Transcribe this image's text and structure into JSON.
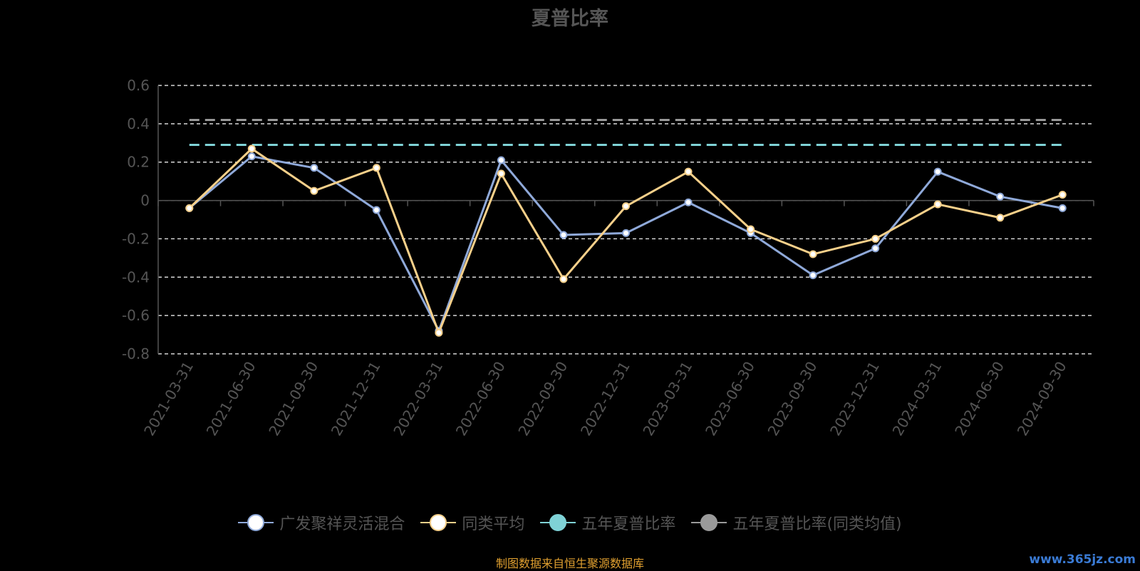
{
  "chart_data": {
    "type": "line",
    "title": "夏普比率",
    "categories": [
      "2021-03-31",
      "2021-06-30",
      "2021-09-30",
      "2021-12-31",
      "2022-03-31",
      "2022-06-30",
      "2022-09-30",
      "2022-12-31",
      "2023-03-31",
      "2023-06-30",
      "2023-09-30",
      "2023-12-31",
      "2024-03-31",
      "2024-06-30",
      "2024-09-30"
    ],
    "yticks": [
      "0.6",
      "0.4",
      "0.2",
      "0",
      "-0.2",
      "-0.4",
      "-0.6",
      "-0.8"
    ],
    "ylim": [
      -0.8,
      0.6
    ],
    "grid": true,
    "legend_position": "bottom",
    "series": [
      {
        "name": "广发聚祥灵活混合",
        "color": "#8fa9d9",
        "values": [
          -0.04,
          0.23,
          0.17,
          -0.05,
          -0.68,
          0.21,
          -0.18,
          -0.17,
          -0.01,
          -0.17,
          -0.39,
          -0.25,
          0.15,
          0.02,
          -0.04
        ]
      },
      {
        "name": "同类平均",
        "color": "#f7d08a",
        "values": [
          -0.04,
          0.27,
          0.05,
          0.17,
          -0.69,
          0.14,
          -0.41,
          -0.03,
          0.15,
          -0.15,
          -0.28,
          -0.2,
          -0.02,
          -0.09,
          0.03
        ]
      },
      {
        "name": "五年夏普比率",
        "color": "#7fd2d6",
        "dashed": true,
        "constant": 0.29
      },
      {
        "name": "五年夏普比率(同类均值)",
        "color": "#9a9a9a",
        "dashed": true,
        "constant": 0.42
      }
    ]
  },
  "footer": {
    "text": "制图数据来自恒生聚源数据库",
    "color": "#e0a030"
  },
  "watermark": {
    "text": "www.365jz.com"
  }
}
